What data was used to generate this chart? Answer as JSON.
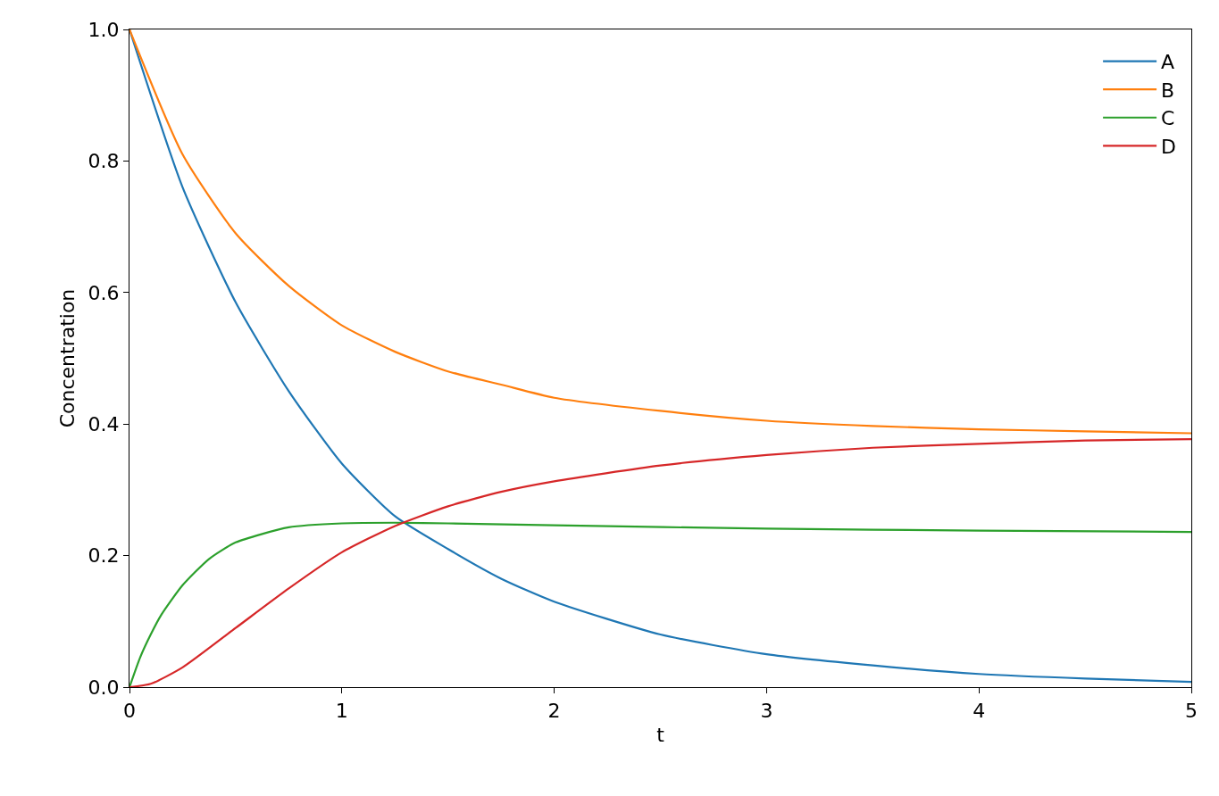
{
  "chart_data": {
    "type": "line",
    "xlabel": "t",
    "ylabel": "Concentration",
    "xlim": [
      0,
      5
    ],
    "xticks": [
      0,
      1,
      2,
      3,
      4,
      5
    ],
    "ylim": [
      0,
      1
    ],
    "yticks": [
      {
        "value": 0,
        "label": "0.0"
      },
      0.2,
      0.4,
      0.6,
      0.8,
      {
        "value": 1,
        "label": "1.0"
      }
    ],
    "legend": "top right",
    "line_style": "solid",
    "marker": "none",
    "series": [
      {
        "name": "A",
        "color": "#1f77b4",
        "x": [
          0,
          0.25,
          0.5,
          0.75,
          1,
          1.25,
          1.5,
          1.75,
          2,
          2.5,
          3,
          3.5,
          4,
          4.5,
          5
        ],
        "values": [
          1.0,
          0.76,
          0.585,
          0.45,
          0.34,
          0.26,
          0.21,
          0.165,
          0.13,
          0.08,
          0.05,
          0.033,
          0.02,
          0.013,
          0.008
        ]
      },
      {
        "name": "B",
        "color": "#ff7f0e",
        "x": [
          0,
          0.25,
          0.5,
          0.75,
          1,
          1.25,
          1.5,
          1.75,
          2,
          2.5,
          3,
          3.5,
          4,
          4.5,
          5
        ],
        "values": [
          1.0,
          0.81,
          0.69,
          0.61,
          0.55,
          0.51,
          0.48,
          0.46,
          0.44,
          0.42,
          0.405,
          0.397,
          0.392,
          0.389,
          0.386
        ]
      },
      {
        "name": "C",
        "color": "#2ca02c",
        "x": [
          0,
          0.05,
          0.1,
          0.15,
          0.25,
          0.375,
          0.5,
          0.75,
          1,
          1.25,
          1.5,
          2,
          3,
          4,
          5
        ],
        "values": [
          0.0,
          0.045,
          0.08,
          0.11,
          0.155,
          0.195,
          0.22,
          0.243,
          0.249,
          0.25,
          0.249,
          0.246,
          0.241,
          0.238,
          0.236
        ]
      },
      {
        "name": "D",
        "color": "#d62728",
        "x": [
          0,
          0.1,
          0.25,
          0.5,
          0.75,
          1,
          1.25,
          1.5,
          1.75,
          2,
          2.5,
          3,
          3.5,
          4,
          4.5,
          5
        ],
        "values": [
          0.0,
          0.005,
          0.03,
          0.09,
          0.15,
          0.205,
          0.245,
          0.275,
          0.297,
          0.313,
          0.337,
          0.353,
          0.364,
          0.37,
          0.375,
          0.377
        ]
      }
    ]
  }
}
